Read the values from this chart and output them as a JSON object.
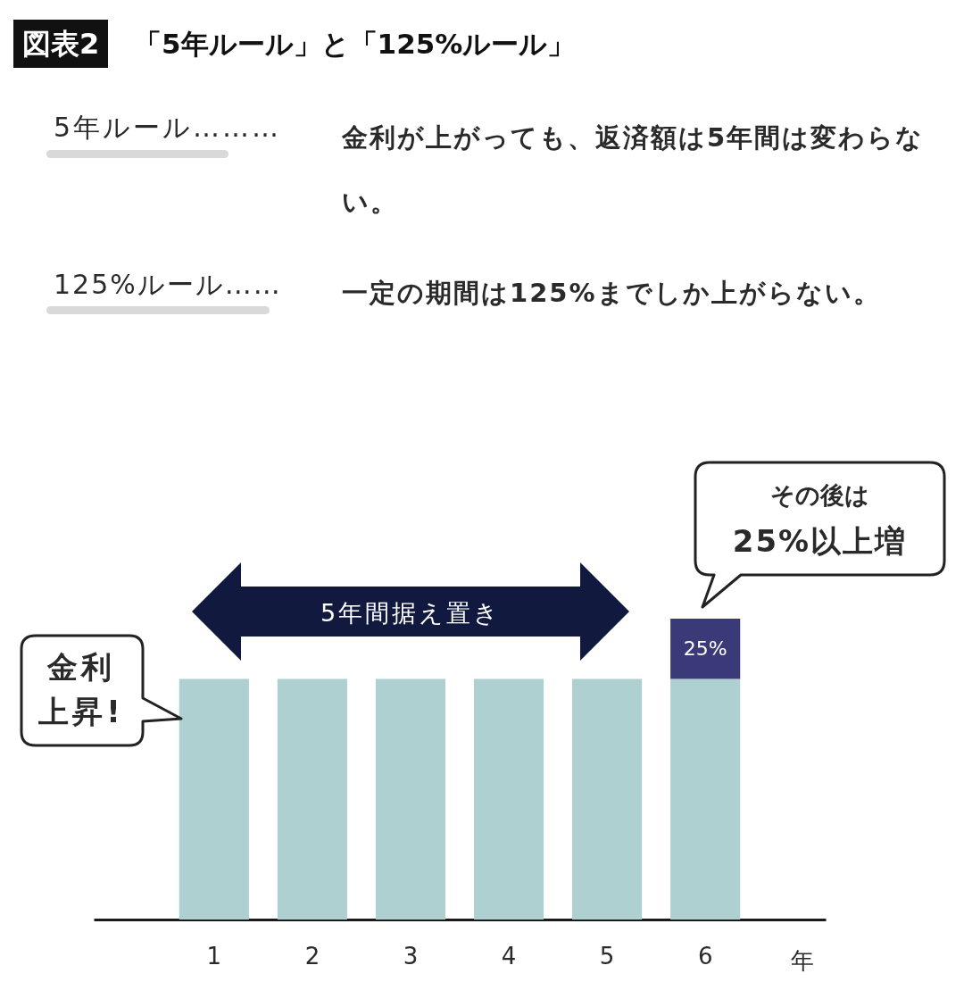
{
  "chart_data": {
    "type": "bar",
    "title": "「5年ルール」と「125%ルール」",
    "xlabel": "年",
    "categories": [
      "1",
      "2",
      "3",
      "4",
      "5",
      "6"
    ],
    "stacked": true,
    "ylim": [
      0,
      125
    ],
    "series": [
      {
        "color": "#afd0d1",
        "values": [
          100,
          100,
          100,
          100,
          100,
          100
        ]
      },
      {
        "color": "#3b3a78",
        "values": [
          null,
          null,
          null,
          null,
          null,
          25
        ],
        "value_labels": [
          null,
          null,
          null,
          null,
          null,
          "25%"
        ]
      }
    ],
    "annotations": [
      "図表2",
      "5年ルール………",
      "金利が上がっても、返済額は5年間は変わらない。",
      "125%ルール……",
      "一定の期間は125%までしか上がらない。",
      "金利上昇!",
      "その後は",
      "25%以上増",
      "5年間据え置き"
    ]
  }
}
